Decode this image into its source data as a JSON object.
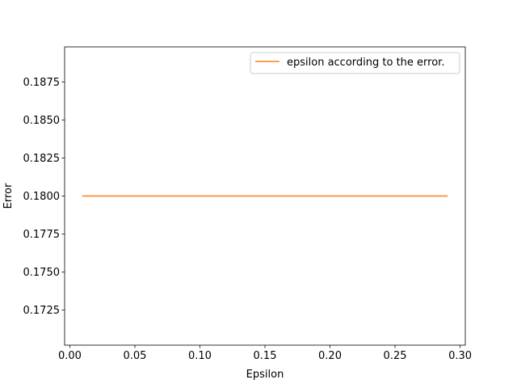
{
  "chart_data": {
    "type": "line",
    "title": "",
    "xlabel": "Epsilon",
    "ylabel": "Error",
    "xlim": [
      -0.004,
      0.304
    ],
    "ylim": [
      0.1702,
      0.1898
    ],
    "xticks": [
      0.0,
      0.05,
      0.1,
      0.15,
      0.2,
      0.25,
      0.3
    ],
    "xtick_labels": [
      "0.00",
      "0.05",
      "0.10",
      "0.15",
      "0.20",
      "0.25",
      "0.30"
    ],
    "yticks": [
      0.1725,
      0.175,
      0.1775,
      0.18,
      0.1825,
      0.185,
      0.1875
    ],
    "ytick_labels": [
      "0.1725",
      "0.1750",
      "0.1775",
      "0.1800",
      "0.1825",
      "0.1850",
      "0.1875"
    ],
    "grid": false,
    "legend_position": "top-right",
    "series": [
      {
        "name": "epsilon according to the error.",
        "color": "#ff7f0e",
        "x": [
          0.01,
          0.02,
          0.03,
          0.04,
          0.05,
          0.06,
          0.07,
          0.08,
          0.09,
          0.1,
          0.11,
          0.12,
          0.13,
          0.14,
          0.15,
          0.16,
          0.17,
          0.18,
          0.19,
          0.2,
          0.21,
          0.22,
          0.23,
          0.24,
          0.25,
          0.26,
          0.27,
          0.28,
          0.29
        ],
        "y": [
          0.18,
          0.18,
          0.18,
          0.18,
          0.18,
          0.18,
          0.18,
          0.18,
          0.18,
          0.18,
          0.18,
          0.18,
          0.18,
          0.18,
          0.18,
          0.18,
          0.18,
          0.18,
          0.18,
          0.18,
          0.18,
          0.18,
          0.18,
          0.18,
          0.18,
          0.18,
          0.18,
          0.18,
          0.18
        ]
      }
    ]
  }
}
